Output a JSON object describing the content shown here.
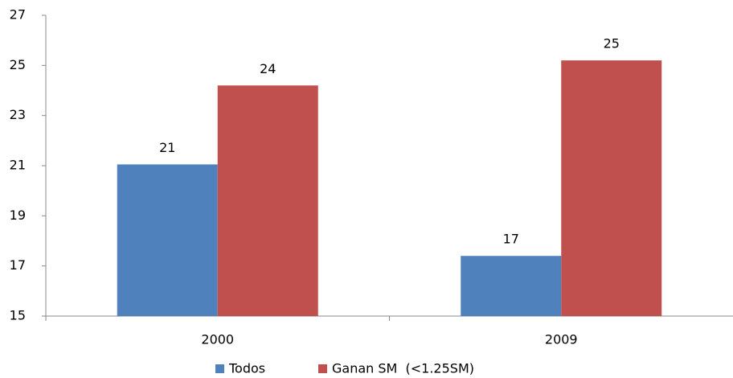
{
  "chart_data": {
    "type": "bar",
    "categories": [
      "2000",
      "2009"
    ],
    "series": [
      {
        "name": "Todos",
        "color": "#4f81bd",
        "values": [
          21.05,
          17.4
        ],
        "value_labels": [
          "21",
          "17"
        ]
      },
      {
        "name": "Ganan SM  (<1.25SM)",
        "color": "#c0504d",
        "values": [
          24.2,
          25.2
        ],
        "value_labels": [
          "24",
          "25"
        ]
      }
    ],
    "ylim": [
      15,
      27
    ],
    "yticks": [
      15,
      17,
      19,
      21,
      23,
      25,
      27
    ],
    "grid": false,
    "legend": "bottom"
  }
}
